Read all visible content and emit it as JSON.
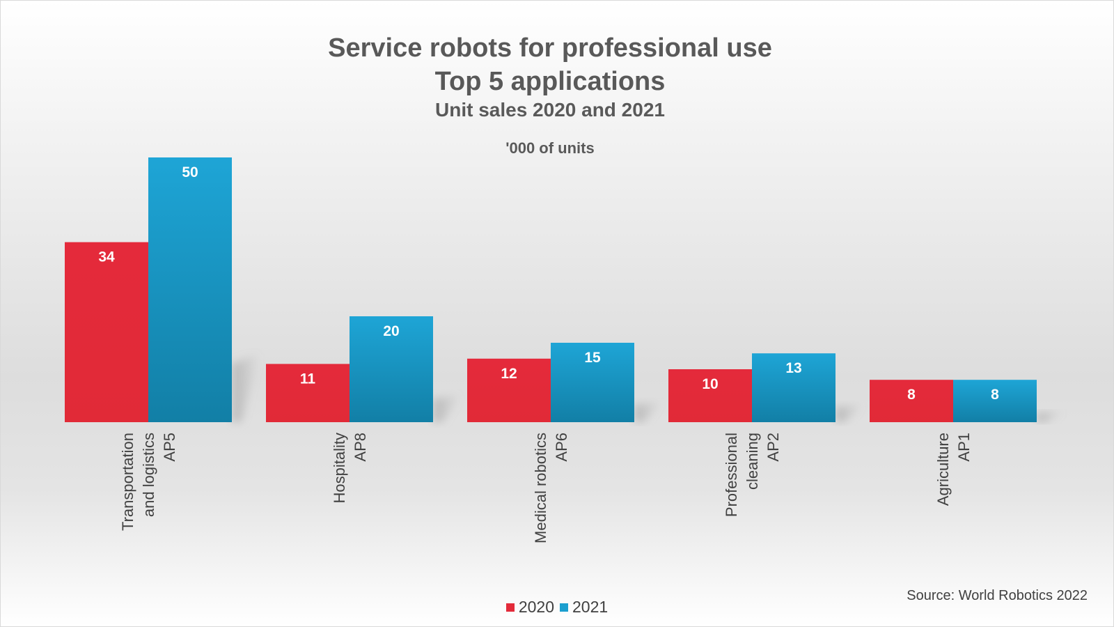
{
  "chart_data": {
    "type": "bar",
    "title": "Service robots for professional use",
    "title_line2": "Top 5 applications",
    "subtitle": "Unit sales 2020 and 2021",
    "units_label": "'000 of units",
    "categories": [
      [
        "Transportation",
        "and logistics",
        "AP5"
      ],
      [
        "Hospitality",
        "AP8"
      ],
      [
        "Medical robotics",
        "AP6"
      ],
      [
        "Professional",
        "cleaning",
        "AP2"
      ],
      [
        "Agriculture",
        "AP1"
      ]
    ],
    "series": [
      {
        "name": "2020",
        "color": "#e32b3a",
        "values": [
          34,
          11,
          12,
          10,
          8
        ]
      },
      {
        "name": "2021",
        "color": "#1b9fcf",
        "values": [
          50,
          20,
          15,
          13,
          8
        ]
      }
    ],
    "ylim": [
      0,
      50
    ],
    "grid": false,
    "legend_position": "bottom",
    "source": "Source: World Robotics 2022"
  }
}
